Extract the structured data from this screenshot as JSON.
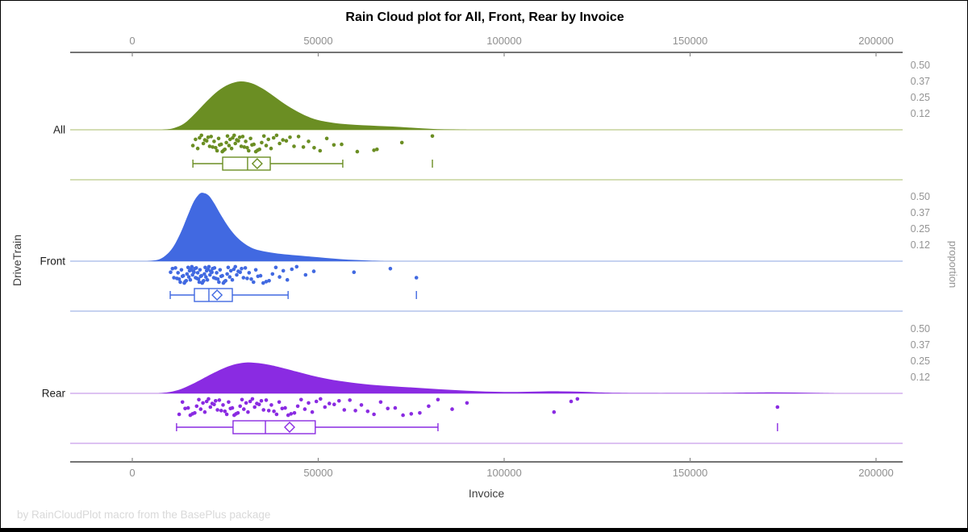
{
  "chart_data": {
    "type": "raincloud",
    "title": "Rain Cloud plot for All, Front, Rear by Invoice",
    "xlabel": "Invoice",
    "ylabel": "DriveTrain",
    "y2label": "proportion",
    "footer": "by RainCloudPlot macro from the BasePlus package",
    "x_axis": {
      "min": 0,
      "max": 200000,
      "tick_values": [
        0,
        50000,
        100000,
        150000,
        200000
      ],
      "tick_labels": [
        "0",
        "50000",
        "100000",
        "150000",
        "200000"
      ]
    },
    "proportion_axis": {
      "tick_values": [
        0.5,
        0.375,
        0.25,
        0.125
      ],
      "tick_labels": [
        "0.50",
        "0.37",
        "0.25",
        "0.12"
      ]
    },
    "groups": [
      {
        "name": "All",
        "color": "#6B8E23",
        "light_color": "#c6d39b",
        "density": [
          [
            8000,
            0
          ],
          [
            11000,
            0.012
          ],
          [
            14000,
            0.05
          ],
          [
            17000,
            0.13
          ],
          [
            20000,
            0.22
          ],
          [
            23000,
            0.3
          ],
          [
            26000,
            0.352
          ],
          [
            29000,
            0.375
          ],
          [
            32000,
            0.362
          ],
          [
            35000,
            0.32
          ],
          [
            38000,
            0.262
          ],
          [
            41000,
            0.2
          ],
          [
            44000,
            0.148
          ],
          [
            47000,
            0.105
          ],
          [
            50000,
            0.075
          ],
          [
            54000,
            0.054
          ],
          [
            58000,
            0.042
          ],
          [
            62000,
            0.035
          ],
          [
            66000,
            0.03
          ],
          [
            70000,
            0.025
          ],
          [
            74000,
            0.018
          ],
          [
            78000,
            0.011
          ],
          [
            82000,
            0.005
          ],
          [
            86000,
            0.002
          ],
          [
            90000,
            0
          ]
        ],
        "box": {
          "whisker_low": 16300,
          "q1": 24300,
          "median": 31000,
          "q3": 37100,
          "whisker_high": 56600,
          "mean": 33600,
          "outliers": [
            80700
          ]
        },
        "points": [
          16300,
          17000,
          17600,
          18100,
          18600,
          19100,
          19500,
          20000,
          20400,
          20800,
          21200,
          21600,
          22000,
          22400,
          22800,
          23200,
          23500,
          23900,
          24200,
          24600,
          24900,
          25300,
          25600,
          26000,
          26300,
          26700,
          27000,
          27400,
          27700,
          28100,
          28500,
          28900,
          29300,
          29700,
          30100,
          30500,
          30900,
          31300,
          31800,
          32200,
          32700,
          33200,
          33700,
          34200,
          34800,
          35400,
          36000,
          36600,
          37300,
          38000,
          38800,
          39600,
          40500,
          41400,
          42400,
          43500,
          44700,
          46000,
          47400,
          48900,
          50500,
          52300,
          54200,
          56300,
          60500,
          65000,
          65800,
          72500,
          80700
        ]
      },
      {
        "name": "Front",
        "color": "#4169E1",
        "light_color": "#b3c4ec",
        "density": [
          [
            4000,
            0
          ],
          [
            7000,
            0.012
          ],
          [
            9000,
            0.045
          ],
          [
            11000,
            0.11
          ],
          [
            13000,
            0.22
          ],
          [
            15000,
            0.36
          ],
          [
            16500,
            0.46
          ],
          [
            18000,
            0.52
          ],
          [
            19000,
            0.53
          ],
          [
            20500,
            0.51
          ],
          [
            22000,
            0.45
          ],
          [
            24000,
            0.35
          ],
          [
            26000,
            0.26
          ],
          [
            28000,
            0.19
          ],
          [
            30000,
            0.14
          ],
          [
            32000,
            0.105
          ],
          [
            34000,
            0.085
          ],
          [
            37000,
            0.068
          ],
          [
            40000,
            0.056
          ],
          [
            44000,
            0.045
          ],
          [
            48000,
            0.035
          ],
          [
            52000,
            0.025
          ],
          [
            56000,
            0.016
          ],
          [
            60000,
            0.009
          ],
          [
            64000,
            0.004
          ],
          [
            68000,
            0
          ]
        ],
        "box": {
          "whisker_low": 10200,
          "q1": 16700,
          "median": 20600,
          "q3": 26900,
          "whisker_high": 41900,
          "mean": 22800,
          "outliers": [
            76400
          ]
        },
        "points": [
          10300,
          10800,
          11200,
          11600,
          12000,
          12300,
          12600,
          12900,
          13200,
          13500,
          13700,
          14000,
          14200,
          14500,
          14700,
          15000,
          15200,
          15400,
          15600,
          15800,
          16000,
          16200,
          16400,
          16600,
          16800,
          17000,
          17200,
          17400,
          17600,
          17800,
          18000,
          18200,
          18400,
          18600,
          18800,
          19000,
          19200,
          19400,
          19600,
          19800,
          20000,
          20200,
          20400,
          20600,
          20900,
          21100,
          21400,
          21600,
          21900,
          22100,
          22400,
          22700,
          23000,
          23300,
          23600,
          23900,
          24200,
          24500,
          24800,
          25100,
          25500,
          25800,
          26200,
          26500,
          26900,
          27300,
          27700,
          28100,
          28500,
          29000,
          29400,
          29900,
          30400,
          30900,
          31400,
          32000,
          32600,
          33200,
          33800,
          34500,
          35200,
          36000,
          36800,
          37700,
          38600,
          39600,
          40600,
          41700,
          42900,
          44200,
          46600,
          48800,
          59600,
          69400,
          76400
        ]
      },
      {
        "name": "Rear",
        "color": "#8A2BE2",
        "light_color": "#d2aeee",
        "density": [
          [
            7000,
            0
          ],
          [
            10000,
            0.01
          ],
          [
            13000,
            0.032
          ],
          [
            16000,
            0.07
          ],
          [
            19000,
            0.115
          ],
          [
            22000,
            0.16
          ],
          [
            25000,
            0.2
          ],
          [
            28000,
            0.228
          ],
          [
            31000,
            0.24
          ],
          [
            34000,
            0.234
          ],
          [
            37000,
            0.22
          ],
          [
            40000,
            0.2
          ],
          [
            44000,
            0.17
          ],
          [
            48000,
            0.14
          ],
          [
            52000,
            0.115
          ],
          [
            56000,
            0.095
          ],
          [
            60000,
            0.08
          ],
          [
            65000,
            0.065
          ],
          [
            70000,
            0.055
          ],
          [
            75000,
            0.046
          ],
          [
            80000,
            0.037
          ],
          [
            85000,
            0.028
          ],
          [
            90000,
            0.02
          ],
          [
            95000,
            0.014
          ],
          [
            100000,
            0.011
          ],
          [
            105000,
            0.012
          ],
          [
            110000,
            0.015
          ],
          [
            115000,
            0.016
          ],
          [
            120000,
            0.013
          ],
          [
            125000,
            0.008
          ],
          [
            130000,
            0.004
          ],
          [
            138000,
            0.002
          ],
          [
            148000,
            0.002
          ],
          [
            158000,
            0.003
          ],
          [
            166000,
            0.006
          ],
          [
            172000,
            0.008
          ],
          [
            178000,
            0.006
          ],
          [
            184000,
            0.003
          ],
          [
            190000,
            0
          ]
        ],
        "box": {
          "whisker_low": 11900,
          "q1": 27100,
          "median": 35800,
          "q3": 49200,
          "whisker_high": 82200,
          "mean": 42300,
          "outliers": [
            173500
          ]
        },
        "points": [
          12600,
          13500,
          14200,
          15000,
          15600,
          16200,
          16800,
          17300,
          17900,
          18400,
          19000,
          19500,
          20000,
          20500,
          21000,
          21500,
          22000,
          22400,
          22900,
          23400,
          23900,
          24400,
          24900,
          25400,
          25900,
          26400,
          26900,
          27400,
          27900,
          28400,
          29000,
          29500,
          30000,
          30600,
          31100,
          31700,
          32300,
          32900,
          33500,
          34100,
          34700,
          35300,
          36000,
          36700,
          37400,
          38100,
          38800,
          39500,
          40300,
          41100,
          41900,
          42700,
          43600,
          44500,
          45400,
          46400,
          47400,
          48400,
          49500,
          50600,
          51800,
          53000,
          54300,
          55600,
          57000,
          58500,
          60000,
          61600,
          63300,
          65000,
          66800,
          68700,
          70700,
          72800,
          75000,
          77300,
          79700,
          82200,
          86000,
          90000,
          113400,
          118000,
          119700,
          173500
        ]
      }
    ],
    "jitter_pattern": [
      0.62,
      0.11,
      0.83,
      0.35,
      0.55,
      0.04,
      0.91,
      0.27,
      0.7,
      0.45,
      0.15,
      0.96,
      0.5,
      0.22,
      0.78,
      0.38,
      0.08,
      0.66,
      0.88,
      0.3,
      0.58,
      0.18,
      0.74
    ]
  }
}
